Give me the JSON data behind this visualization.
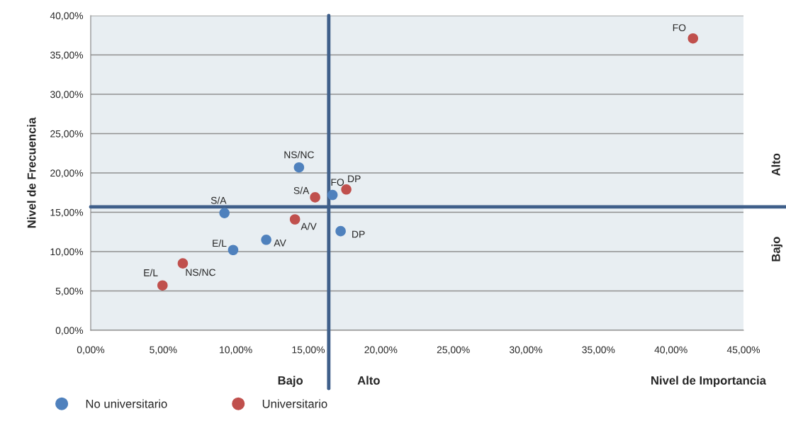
{
  "chart_data": {
    "type": "scatter",
    "xlabel": "Nivel de Importancia",
    "ylabel": "Nivel de Frecuencia",
    "series": [
      {
        "name": "No universitario",
        "color": "#4f81bd",
        "x": [
          14.36,
          16.67,
          9.22,
          17.23,
          12.1,
          9.82
        ],
        "values": [
          20.7,
          17.2,
          14.9,
          12.6,
          11.5,
          10.2
        ]
      },
      {
        "name": "Universitario",
        "color": "#c0504d",
        "x": [
          17.62,
          15.47,
          14.08,
          6.35,
          4.95,
          41.52
        ],
        "values": [
          17.9,
          16.9,
          14.1,
          8.5,
          5.7,
          37.1
        ]
      }
    ],
    "annotations": [
      {
        "text": "NS/NC",
        "x": 14.36,
        "y": 20.7
      },
      {
        "text": "FO",
        "x": 16.67,
        "y": 17.2
      },
      {
        "text": "S/A",
        "x": 9.22,
        "y": 14.9
      },
      {
        "text": "DP",
        "x": 17.23,
        "y": 12.6
      },
      {
        "text": "AV",
        "x": 12.1,
        "y": 11.5
      },
      {
        "text": "E/L",
        "x": 9.82,
        "y": 10.2
      },
      {
        "text": "DP",
        "x": 17.62,
        "y": 17.9
      },
      {
        "text": "S/A",
        "x": 15.47,
        "y": 16.9
      },
      {
        "text": "A/V",
        "x": 14.08,
        "y": 14.1
      },
      {
        "text": "NS/NC",
        "x": 6.35,
        "y": 8.5
      },
      {
        "text": "E/L",
        "x": 4.95,
        "y": 5.7
      },
      {
        "text": "FO",
        "x": 41.52,
        "y": 37.1
      },
      "Bajo",
      "Alto",
      "Alto",
      "Bajo"
    ],
    "ref_lines": [
      {
        "axis": "x",
        "value": 16.41,
        "color": "#3f5f8a"
      },
      {
        "axis": "y",
        "value": 15.68,
        "color": "#3f5f8a"
      }
    ],
    "xlim": [
      0,
      45
    ],
    "ylim": [
      0,
      40
    ],
    "xticks": [
      {
        "value": 0,
        "label": "0,00%"
      },
      {
        "value": 5,
        "label": "5,00%"
      },
      {
        "value": 10,
        "label": "10,00%"
      },
      {
        "value": 15,
        "label": "15,00%"
      },
      {
        "value": 20,
        "label": "20,00%"
      },
      {
        "value": 25,
        "label": "25,00%"
      },
      {
        "value": 30,
        "label": "30,00%"
      },
      {
        "value": 35,
        "label": "35,00%"
      },
      {
        "value": 40,
        "label": "40,00%"
      },
      {
        "value": 45,
        "label": "45,00%"
      }
    ],
    "yticks": [
      {
        "value": 0,
        "label": "0,00%"
      },
      {
        "value": 5,
        "label": "5,00%"
      },
      {
        "value": 10,
        "label": "10,00%"
      },
      {
        "value": 15,
        "label": "15,00%"
      },
      {
        "value": 20,
        "label": "20,00%"
      },
      {
        "value": 25,
        "label": "25,00%"
      },
      {
        "value": 30,
        "label": "30,00%"
      },
      {
        "value": 35,
        "label": "35,00%"
      },
      {
        "value": 40,
        "label": "40,00%"
      }
    ],
    "grid": "y",
    "legend": "bottom",
    "marker": "circle"
  }
}
